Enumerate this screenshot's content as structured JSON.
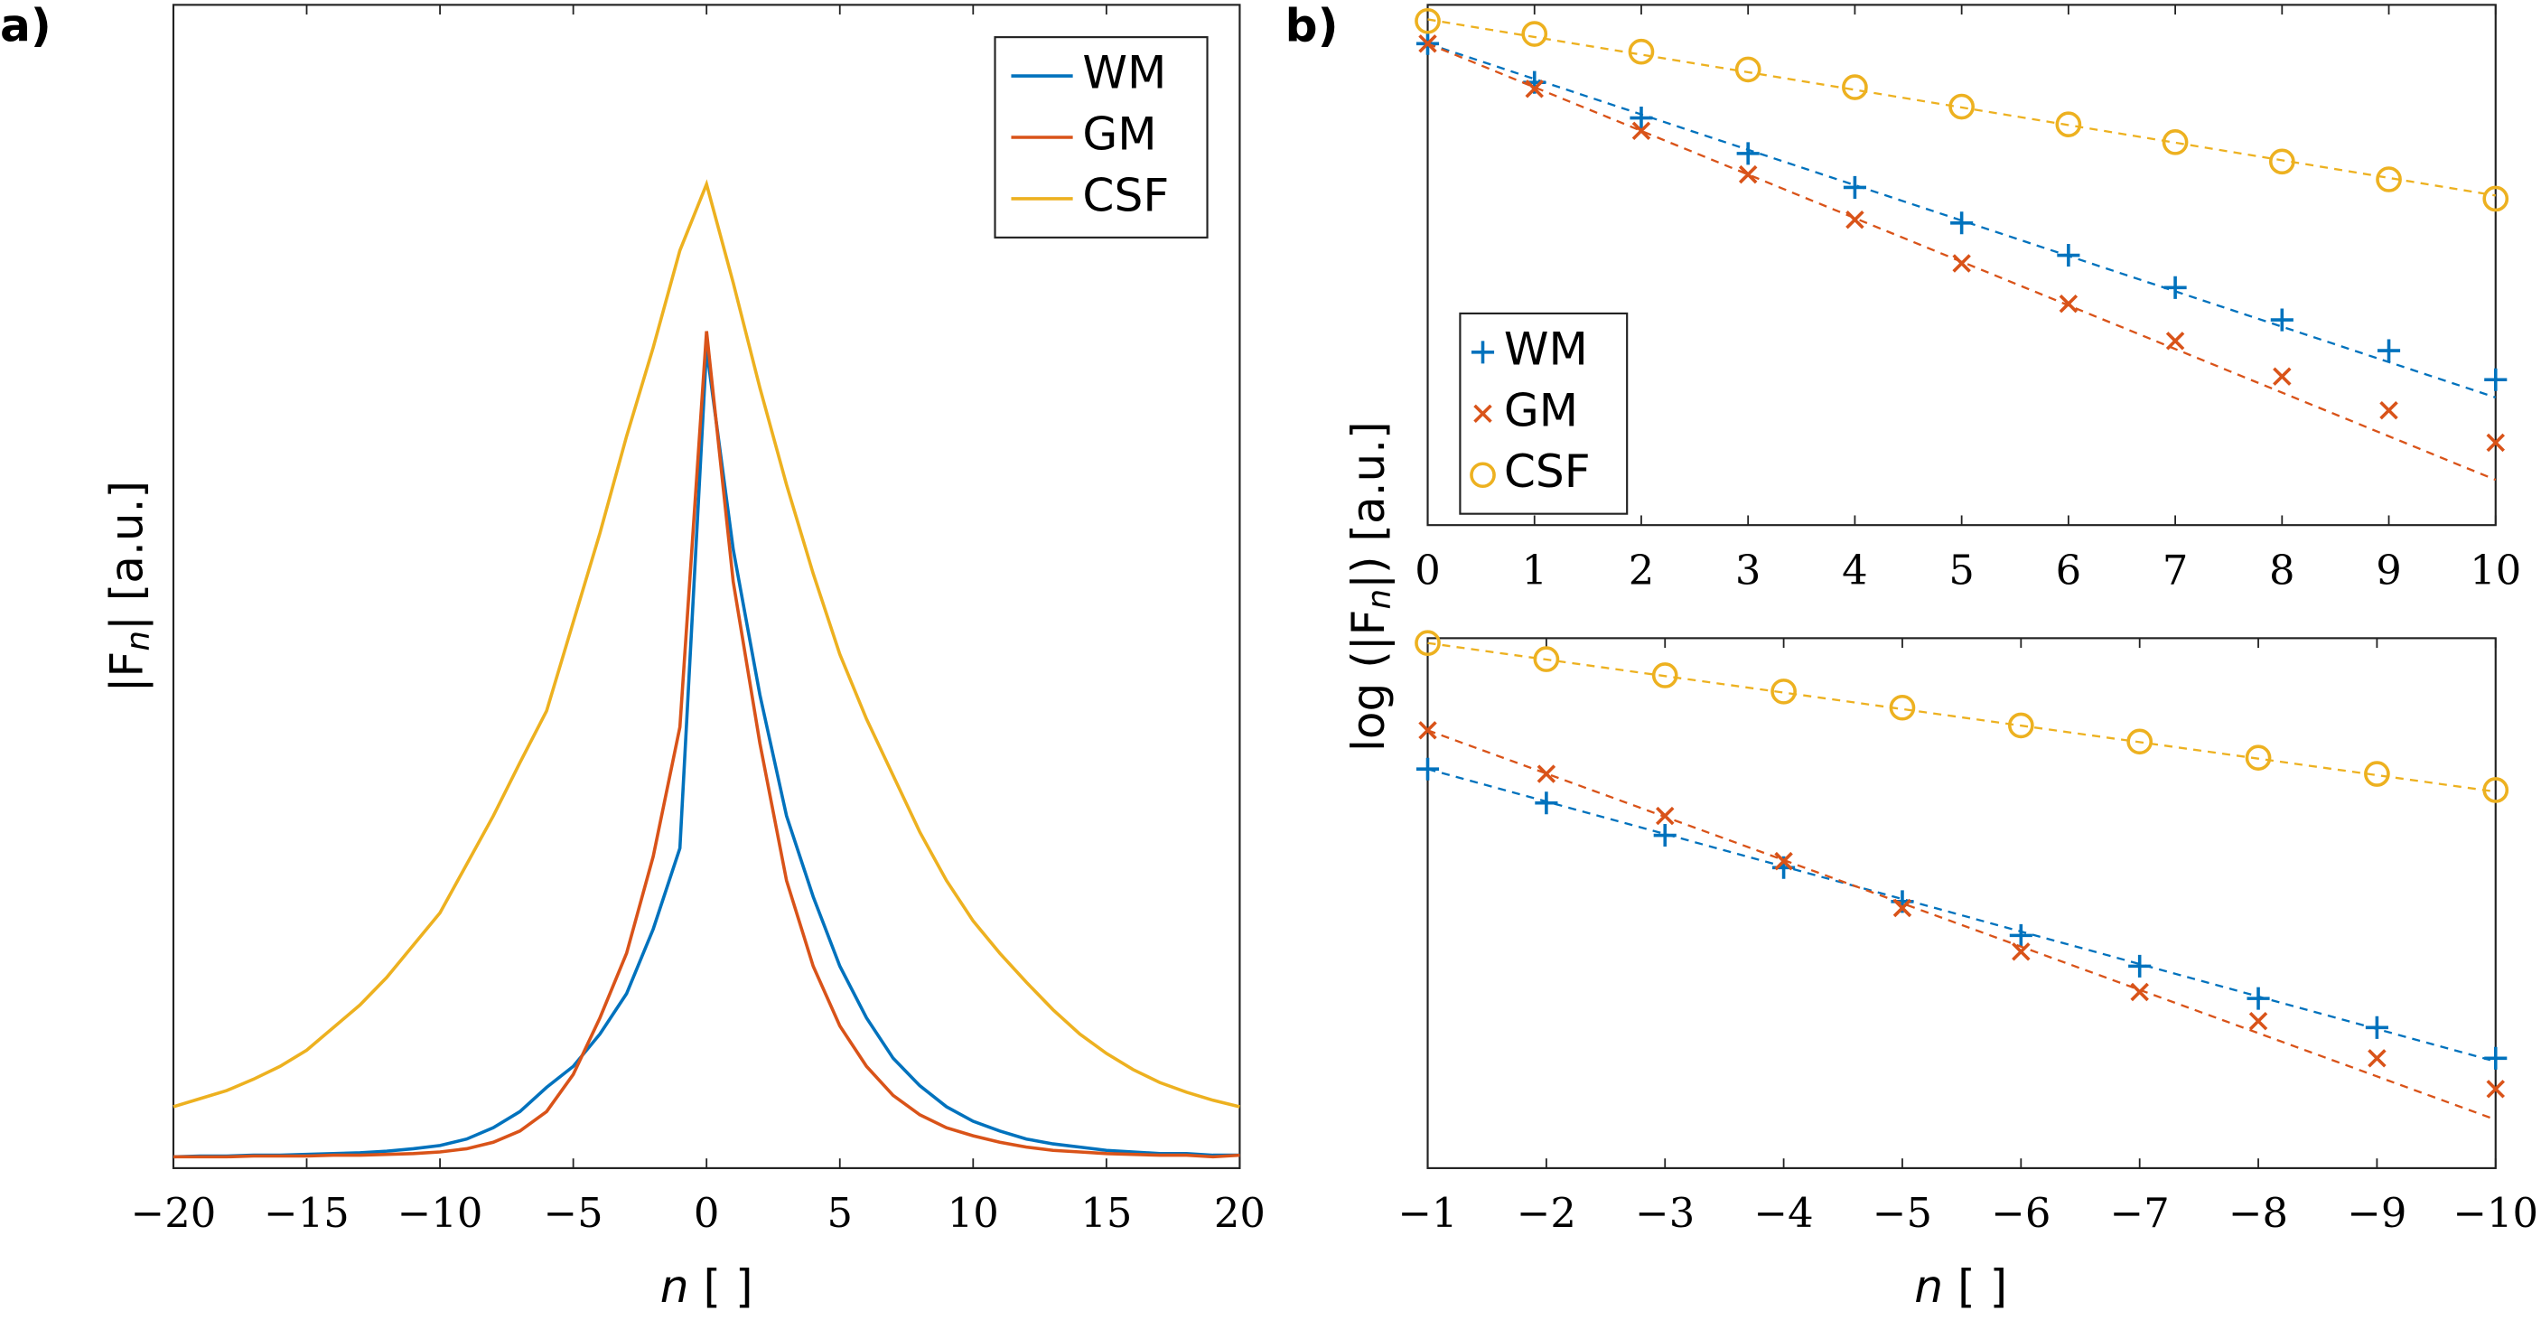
{
  "chart_data": [
    {
      "type": "line",
      "panel_label": "a)",
      "ylabel": [
        "|F",
        "n",
        "| [a.u.]"
      ],
      "xlabel": [
        "n",
        " [ ]"
      ],
      "x": [
        -20,
        -19,
        -18,
        -17,
        -16,
        -15,
        -14,
        -13,
        -12,
        -11,
        -10,
        -9,
        -8,
        -7,
        -6,
        -5,
        -4,
        -3,
        -2,
        -1,
        0,
        1,
        2,
        3,
        4,
        5,
        6,
        7,
        8,
        9,
        10,
        11,
        12,
        13,
        14,
        15,
        16,
        17,
        18,
        19,
        20
      ],
      "xlim": [
        -20,
        20
      ],
      "xticks": [
        {
          "value": -20,
          "label": "−20"
        },
        {
          "value": -15,
          "label": "−15"
        },
        {
          "value": -10,
          "label": "−10"
        },
        {
          "value": -5,
          "label": "−5"
        },
        0,
        5,
        10,
        15,
        20
      ],
      "ylim": [
        0,
        72
      ],
      "legend": "north east",
      "series": [
        {
          "name": "WM",
          "color": "#0072bd",
          "values": [
            0.7,
            0.75,
            0.75,
            0.8,
            0.8,
            0.85,
            0.9,
            0.95,
            1.05,
            1.2,
            1.4,
            1.8,
            2.5,
            3.5,
            5.0,
            6.3,
            8.3,
            10.8,
            14.8,
            19.8,
            50.7,
            38.3,
            29.3,
            21.8,
            16.8,
            12.5,
            9.3,
            6.8,
            5.1,
            3.8,
            2.9,
            2.3,
            1.8,
            1.5,
            1.3,
            1.1,
            1.0,
            0.9,
            0.9,
            0.8,
            0.8
          ]
        },
        {
          "name": "GM",
          "color": "#d95319",
          "values": [
            0.7,
            0.7,
            0.7,
            0.75,
            0.75,
            0.75,
            0.8,
            0.8,
            0.85,
            0.9,
            1.0,
            1.2,
            1.6,
            2.3,
            3.5,
            5.8,
            9.3,
            13.3,
            19.3,
            27.3,
            51.8,
            36.3,
            26.3,
            17.8,
            12.5,
            8.8,
            6.3,
            4.5,
            3.3,
            2.5,
            2.0,
            1.6,
            1.3,
            1.1,
            1.0,
            0.9,
            0.85,
            0.8,
            0.8,
            0.7,
            0.8
          ]
        },
        {
          "name": "CSF",
          "color": "#edb120",
          "values": [
            3.8,
            4.3,
            4.8,
            5.5,
            6.3,
            7.3,
            8.7,
            10.1,
            11.8,
            13.8,
            15.8,
            18.8,
            21.8,
            25.1,
            28.3,
            33.8,
            39.3,
            45.3,
            50.8,
            56.8,
            60.9,
            54.8,
            48.3,
            42.3,
            36.8,
            31.8,
            27.8,
            24.3,
            20.8,
            17.8,
            15.3,
            13.3,
            11.5,
            9.8,
            8.3,
            7.1,
            6.1,
            5.3,
            4.7,
            4.2,
            3.8
          ]
        }
      ]
    },
    {
      "type": "scatter",
      "panel_label": "b)",
      "ylabel": [
        "log (|F",
        "n",
        "|) [a.u.]"
      ],
      "x": [
        0,
        1,
        2,
        3,
        4,
        5,
        6,
        7,
        8,
        9,
        10
      ],
      "xlim": [
        0,
        10
      ],
      "xticks": [
        0,
        1,
        2,
        3,
        4,
        5,
        6,
        7,
        8,
        9,
        10
      ],
      "ylim": [
        0,
        32.2
      ],
      "legend": "south west",
      "series": [
        {
          "name": "WM",
          "color": "#0072bd",
          "marker": "+",
          "values": [
            29.8,
            27.4,
            25.2,
            23.0,
            20.9,
            18.7,
            16.7,
            14.7,
            12.7,
            10.8,
            9.0
          ],
          "fit": [
            29.8,
            7.9
          ]
        },
        {
          "name": "GM",
          "color": "#d95319",
          "marker": "x",
          "values": [
            29.8,
            27.0,
            24.4,
            21.7,
            18.9,
            16.2,
            13.7,
            11.4,
            9.2,
            7.1,
            5.1
          ],
          "fit": [
            29.8,
            2.8
          ]
        },
        {
          "name": "CSF",
          "color": "#edb120",
          "marker": "o",
          "values": [
            31.2,
            30.4,
            29.3,
            28.2,
            27.1,
            25.9,
            24.8,
            23.7,
            22.5,
            21.4,
            20.2
          ],
          "fit": [
            31.3,
            20.4
          ]
        }
      ]
    },
    {
      "type": "scatter",
      "xlabel": [
        "n",
        " [ ]"
      ],
      "x": [
        -1,
        -2,
        -3,
        -4,
        -5,
        -6,
        -7,
        -8,
        -9,
        -10
      ],
      "xlim": [
        -1,
        -10
      ],
      "xticks": [
        {
          "value": -1,
          "label": "−1"
        },
        {
          "value": -2,
          "label": "−2"
        },
        {
          "value": -3,
          "label": "−3"
        },
        {
          "value": -4,
          "label": "−4"
        },
        {
          "value": -5,
          "label": "−5"
        },
        {
          "value": -6,
          "label": "−6"
        },
        {
          "value": -7,
          "label": "−7"
        },
        {
          "value": -8,
          "label": "−8"
        },
        {
          "value": -9,
          "label": "−9"
        },
        {
          "value": -10,
          "label": "−10"
        }
      ],
      "ylim": [
        0,
        32.8
      ],
      "series": [
        {
          "color": "#0072bd",
          "marker": "+",
          "values": [
            24.7,
            22.6,
            20.6,
            18.6,
            16.5,
            14.4,
            12.5,
            10.5,
            8.7,
            6.8
          ],
          "fit": [
            24.7,
            6.6
          ]
        },
        {
          "color": "#d95319",
          "marker": "x",
          "values": [
            27.1,
            24.4,
            21.8,
            19.0,
            16.1,
            13.4,
            10.9,
            9.1,
            6.8,
            4.9
          ],
          "fit": [
            27.1,
            3.0
          ]
        },
        {
          "color": "#edb120",
          "marker": "o",
          "values": [
            32.5,
            31.5,
            30.5,
            29.5,
            28.5,
            27.4,
            26.4,
            25.4,
            24.4,
            23.4
          ],
          "fit": [
            32.5,
            23.3
          ]
        }
      ]
    }
  ]
}
